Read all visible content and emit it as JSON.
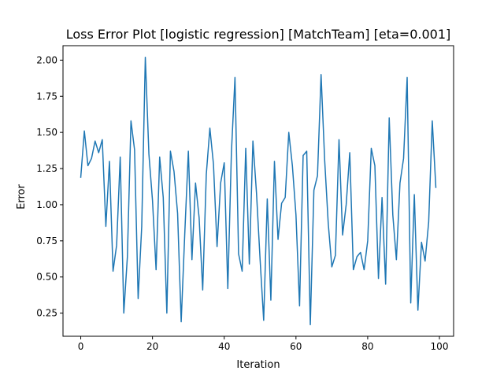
{
  "chart_data": {
    "type": "line",
    "title": "Loss Error Plot [logistic regression] [MatchTeam] [eta=0.001]",
    "xlabel": "Iteration",
    "ylabel": "Error",
    "xlim": [
      -4.95,
      103.95
    ],
    "ylim": [
      0.09,
      2.1
    ],
    "x_ticks": [
      0,
      20,
      40,
      60,
      80,
      100
    ],
    "x_tick_labels": [
      "0",
      "20",
      "40",
      "60",
      "80",
      "100"
    ],
    "y_ticks": [
      0.25,
      0.5,
      0.75,
      1.0,
      1.25,
      1.5,
      1.75,
      2.0
    ],
    "y_tick_labels": [
      "0.25",
      "0.50",
      "0.75",
      "1.00",
      "1.25",
      "1.50",
      "1.75",
      "2.00"
    ],
    "grid": false,
    "legend": "none",
    "series": [
      {
        "color": "#1f77b4",
        "x": [
          0,
          1,
          2,
          3,
          4,
          5,
          6,
          7,
          8,
          9,
          10,
          11,
          12,
          13,
          14,
          15,
          16,
          17,
          18,
          19,
          20,
          21,
          22,
          23,
          24,
          25,
          26,
          27,
          28,
          29,
          30,
          31,
          32,
          33,
          34,
          35,
          36,
          37,
          38,
          39,
          40,
          41,
          42,
          43,
          44,
          45,
          46,
          47,
          48,
          49,
          50,
          51,
          52,
          53,
          54,
          55,
          56,
          57,
          58,
          59,
          60,
          61,
          62,
          63,
          64,
          65,
          66,
          67,
          68,
          69,
          70,
          71,
          72,
          73,
          74,
          75,
          76,
          77,
          78,
          79,
          80,
          81,
          82,
          83,
          84,
          85,
          86,
          87,
          88,
          89,
          90,
          91,
          92,
          93,
          94,
          95,
          96,
          97,
          98,
          99
        ],
        "values": [
          1.19,
          1.51,
          1.27,
          1.32,
          1.44,
          1.36,
          1.45,
          0.85,
          1.3,
          0.54,
          0.72,
          1.33,
          0.25,
          0.64,
          1.58,
          1.38,
          0.35,
          0.85,
          2.02,
          1.35,
          1.03,
          0.55,
          1.33,
          1.05,
          0.25,
          1.37,
          1.23,
          0.94,
          0.19,
          0.8,
          1.37,
          0.62,
          1.15,
          0.91,
          0.41,
          1.21,
          1.53,
          1.28,
          0.71,
          1.15,
          1.29,
          0.42,
          1.36,
          1.88,
          0.66,
          0.54,
          1.39,
          0.59,
          1.44,
          1.08,
          0.62,
          0.2,
          1.04,
          0.34,
          1.3,
          0.76,
          1.01,
          1.05,
          1.5,
          1.27,
          0.93,
          0.3,
          1.34,
          1.37,
          0.17,
          1.1,
          1.2,
          1.9,
          1.31,
          0.87,
          0.57,
          0.65,
          1.45,
          0.79,
          1.0,
          1.36,
          0.55,
          0.64,
          0.67,
          0.55,
          0.75,
          1.39,
          1.27,
          0.49,
          1.05,
          0.45,
          1.6,
          0.93,
          0.62,
          1.15,
          1.32,
          1.88,
          0.32,
          1.07,
          0.27,
          0.74,
          0.61,
          0.88,
          1.58,
          1.12
        ]
      }
    ]
  }
}
